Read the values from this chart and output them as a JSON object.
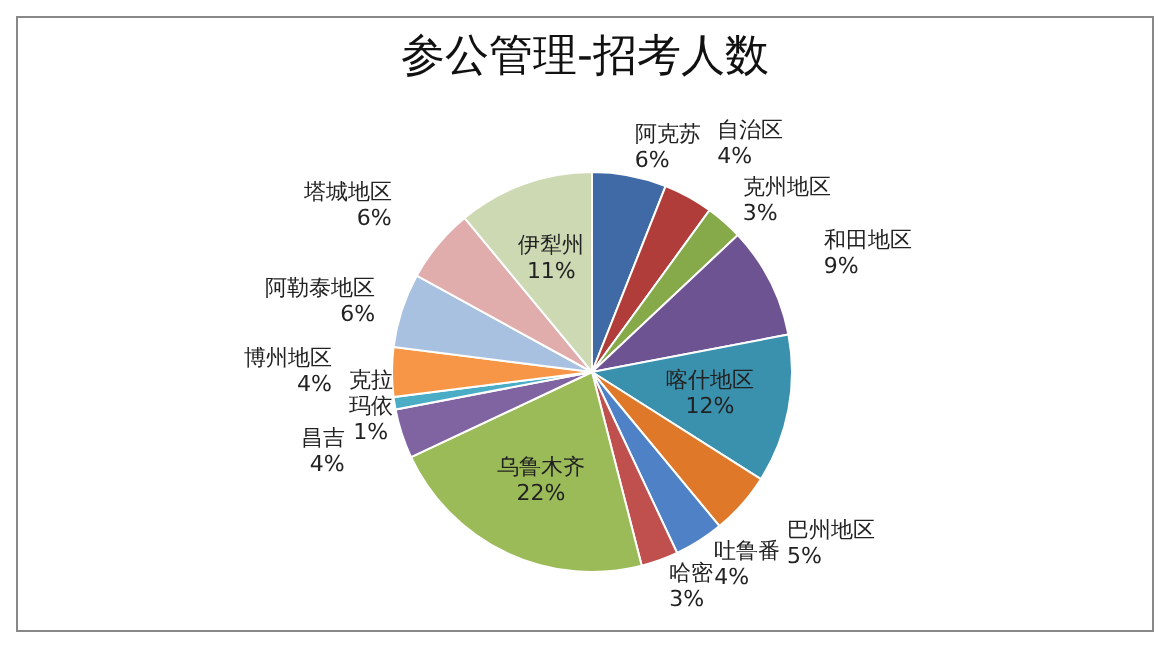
{
  "chart_data": {
    "type": "pie",
    "title": "参公管理-招考人数",
    "categories": [
      "阿克苏",
      "自治区",
      "克州地区",
      "和田地区",
      "喀什地区",
      "巴州地区",
      "吐鲁番",
      "哈密",
      "乌鲁木齐",
      "昌吉",
      "克拉玛依",
      "博州地区",
      "阿勒泰地区",
      "塔城地区",
      "伊犁州"
    ],
    "values": [
      6,
      4,
      3,
      9,
      12,
      5,
      4,
      3,
      22,
      4,
      1,
      4,
      6,
      6,
      11
    ],
    "colors": [
      "#3f6aa6",
      "#b13d3a",
      "#86a94a",
      "#6d5392",
      "#3991ad",
      "#e0782a",
      "#4f81c7",
      "#c0504d",
      "#9bbb59",
      "#8064a2",
      "#4bacc6",
      "#f79646",
      "#a9c1e0",
      "#e0adac",
      "#cdd9b3"
    ],
    "value_labels": [
      "6%",
      "4%",
      "3%",
      "9%",
      "12%",
      "5%",
      "4%",
      "3%",
      "22%",
      "4%",
      "1%",
      "4%",
      "6%",
      "6%",
      "11%"
    ],
    "legend": false
  }
}
